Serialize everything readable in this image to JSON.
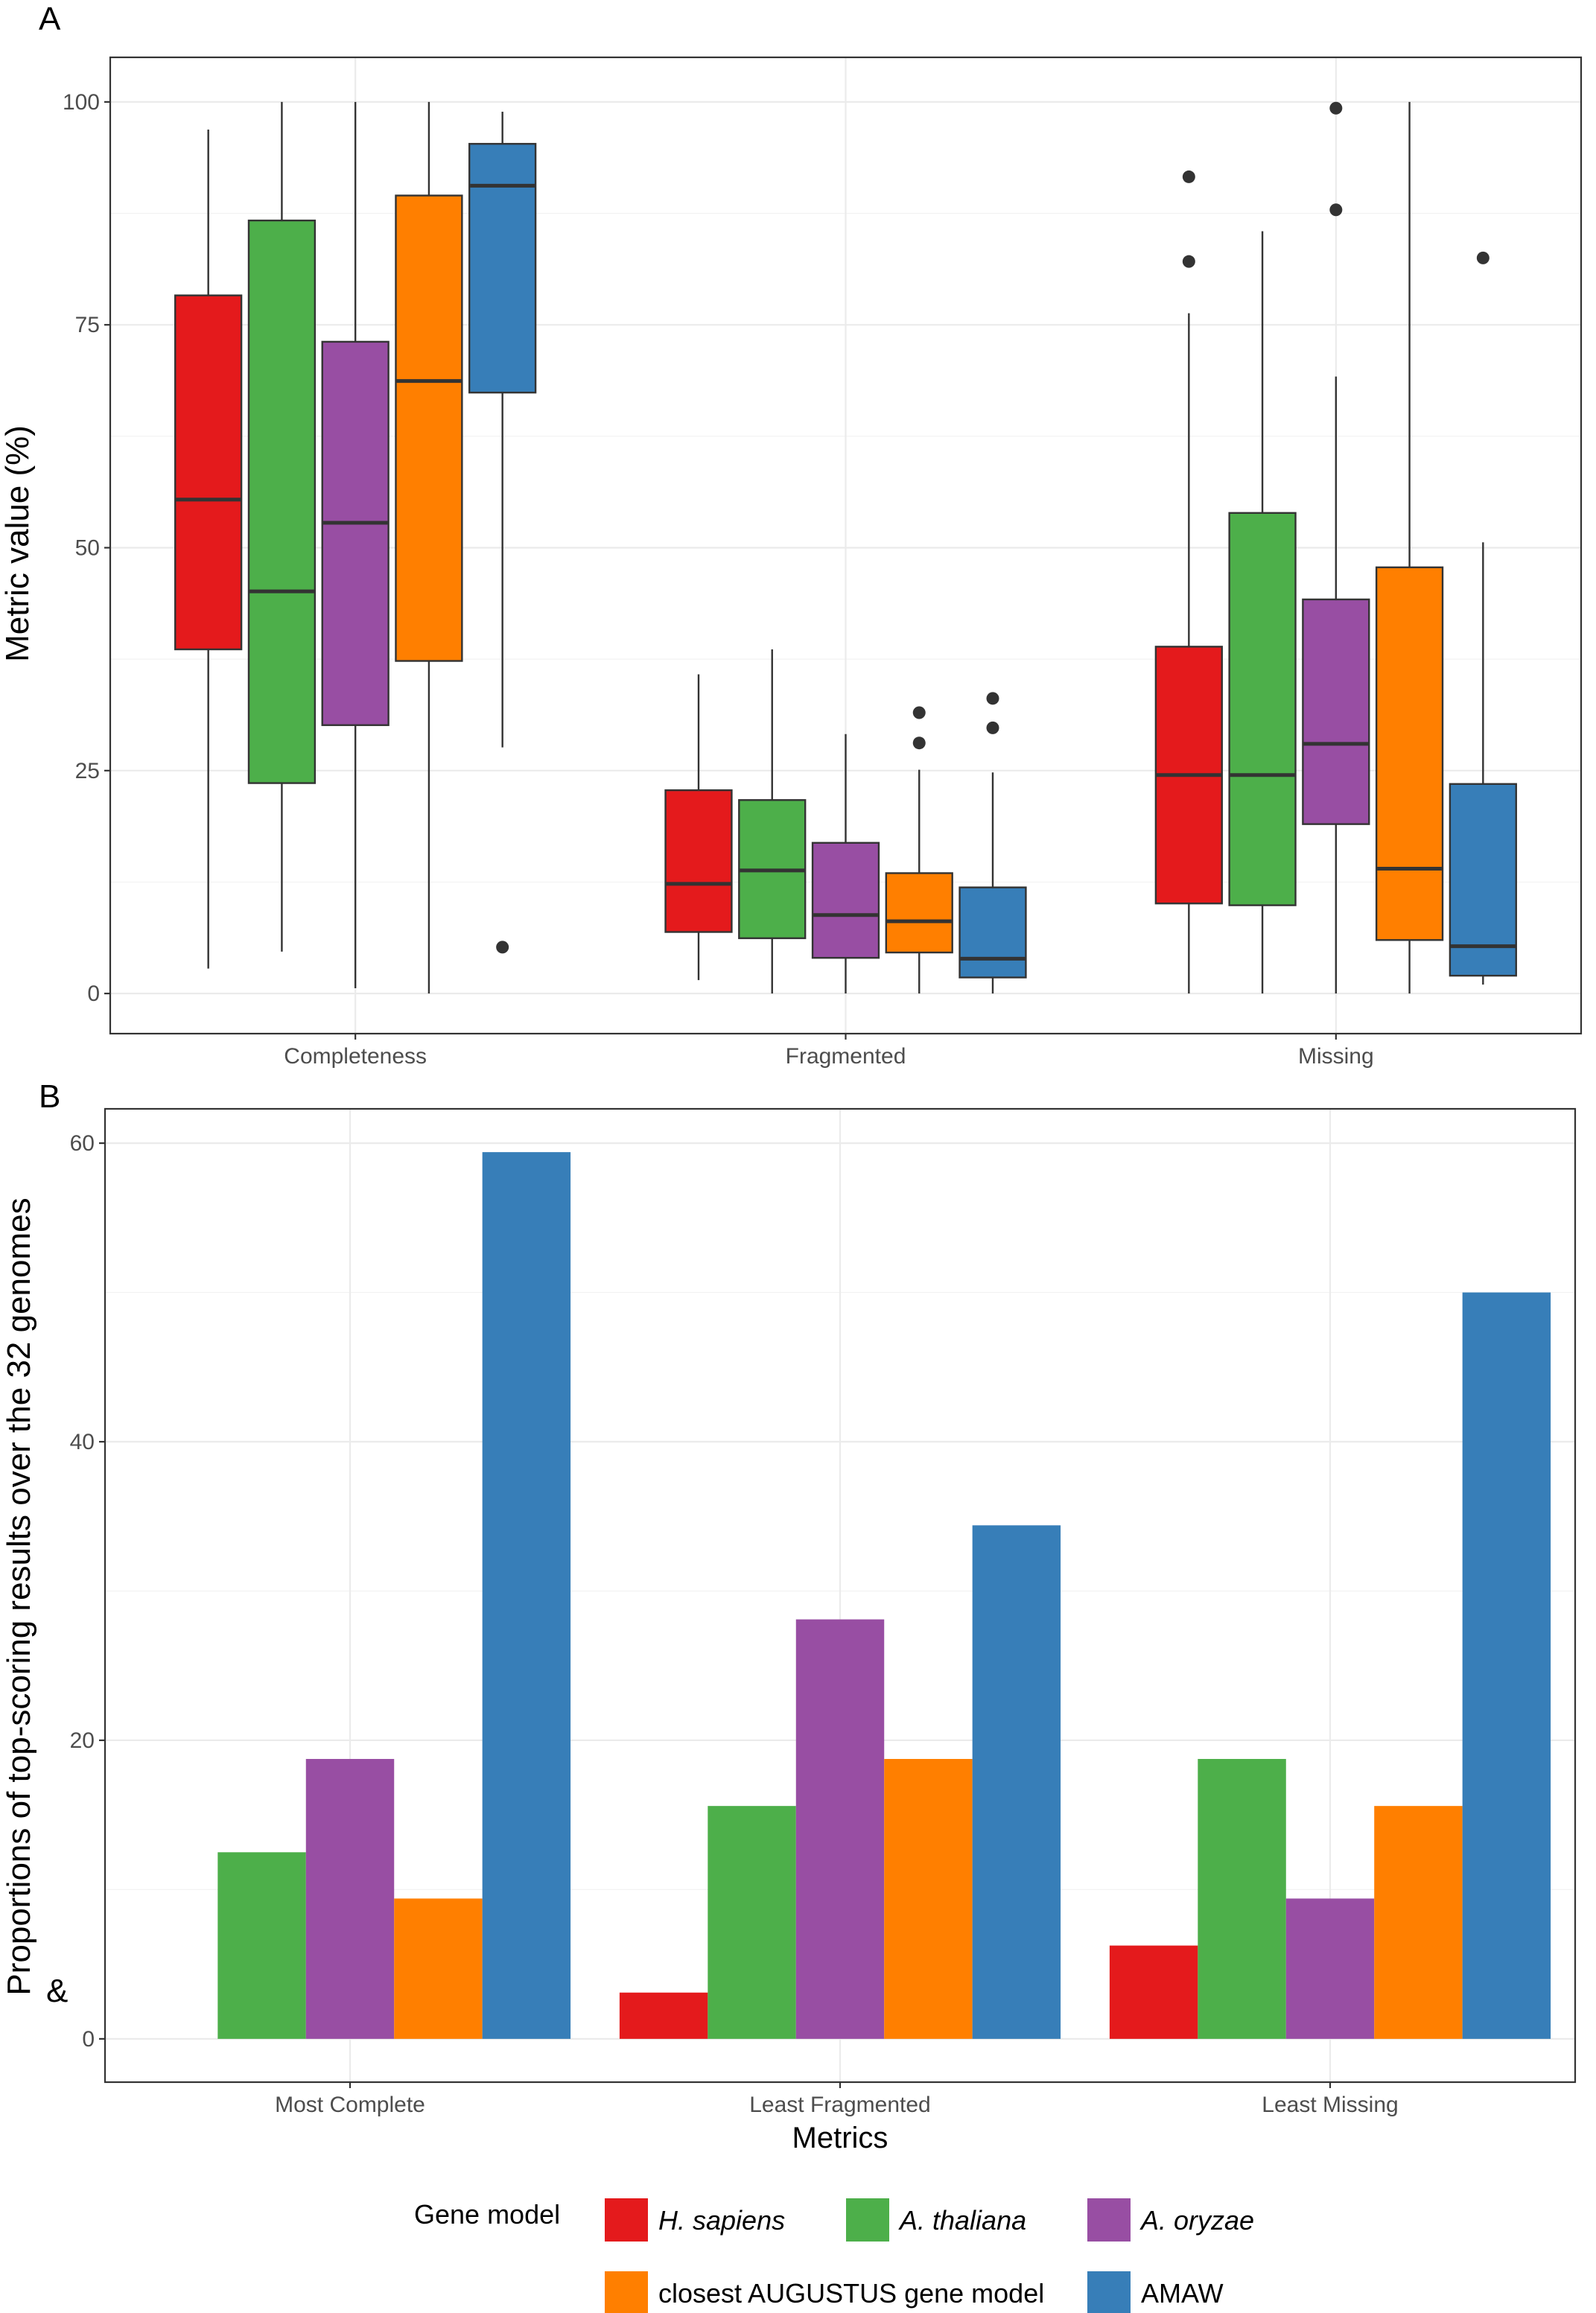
{
  "legend": {
    "title": "Gene model",
    "entries": [
      {
        "label": "H. sapiens",
        "color": "#E41A1C",
        "italic": true
      },
      {
        "label": "A. thaliana",
        "color": "#4DAF4A",
        "italic": true
      },
      {
        "label": "A. oryzae",
        "color": "#984EA3",
        "italic": true
      },
      {
        "label": "closest AUGUSTUS gene model",
        "color": "#FF7F00",
        "italic": false
      },
      {
        "label": "AMAW",
        "color": "#377EB8",
        "italic": false
      }
    ]
  },
  "stray_glyph": "&",
  "chart_data": [
    {
      "panel": "A",
      "type": "boxplot",
      "ylabel": "Metric value (%)",
      "ylim": [
        -4.5,
        105
      ],
      "yticks": [
        0,
        25,
        50,
        75,
        100
      ],
      "categories": [
        "Completeness",
        "Fragmented",
        "Missing"
      ],
      "grid": true,
      "series": [
        {
          "name": "H. sapiens",
          "color": "#E41A1C",
          "boxes": [
            {
              "min": 2.8,
              "q1": 38.6,
              "median": 55.4,
              "q3": 78.3,
              "max": 96.9,
              "outliers": []
            },
            {
              "min": 1.5,
              "q1": 6.9,
              "median": 12.3,
              "q3": 22.8,
              "max": 35.8,
              "outliers": []
            },
            {
              "min": 0,
              "q1": 10.1,
              "median": 24.5,
              "q3": 38.9,
              "max": 76.3,
              "outliers": [
                82.1,
                91.6
              ]
            }
          ]
        },
        {
          "name": "A. thaliana",
          "color": "#4DAF4A",
          "boxes": [
            {
              "min": 4.7,
              "q1": 23.6,
              "median": 45.1,
              "q3": 86.7,
              "max": 100,
              "outliers": []
            },
            {
              "min": 0,
              "q1": 6.2,
              "median": 13.8,
              "q3": 21.7,
              "max": 38.6,
              "outliers": []
            },
            {
              "min": 0,
              "q1": 9.9,
              "median": 24.5,
              "q3": 53.9,
              "max": 85.5,
              "outliers": []
            }
          ]
        },
        {
          "name": "A. oryzae",
          "color": "#984EA3",
          "boxes": [
            {
              "min": 0.6,
              "q1": 30.1,
              "median": 52.8,
              "q3": 73.1,
              "max": 100,
              "outliers": []
            },
            {
              "min": 0,
              "q1": 4.0,
              "median": 8.8,
              "q3": 16.9,
              "max": 29.1,
              "outliers": []
            },
            {
              "min": 0,
              "q1": 19.0,
              "median": 28.0,
              "q3": 44.2,
              "max": 69.2,
              "outliers": [
                87.9,
                99.3
              ]
            }
          ]
        },
        {
          "name": "closest AUGUSTUS gene model",
          "color": "#FF7F00",
          "boxes": [
            {
              "min": 0,
              "q1": 37.3,
              "median": 68.7,
              "q3": 89.5,
              "max": 100,
              "outliers": []
            },
            {
              "min": 0,
              "q1": 4.6,
              "median": 8.1,
              "q3": 13.5,
              "max": 25.1,
              "outliers": [
                28.1,
                31.5
              ]
            },
            {
              "min": 0,
              "q1": 6.0,
              "median": 14.0,
              "q3": 47.8,
              "max": 100,
              "outliers": []
            }
          ]
        },
        {
          "name": "AMAW",
          "color": "#377EB8",
          "boxes": [
            {
              "min": 27.6,
              "q1": 67.4,
              "median": 90.6,
              "q3": 95.3,
              "max": 98.9,
              "outliers": [
                5.2
              ]
            },
            {
              "min": 0,
              "q1": 1.8,
              "median": 3.9,
              "q3": 11.9,
              "max": 24.8,
              "outliers": [
                29.8,
                33.1
              ]
            },
            {
              "min": 1.0,
              "q1": 2.0,
              "median": 5.3,
              "q3": 23.5,
              "max": 50.6,
              "outliers": [
                82.5
              ]
            }
          ]
        }
      ]
    },
    {
      "panel": "B",
      "type": "bar",
      "ylabel": "Proportions  of top-scoring results over the 32 genomes",
      "xlabel": "Metrics",
      "ylim": [
        -2.9,
        62.3
      ],
      "yticks": [
        0,
        20,
        40,
        60
      ],
      "categories": [
        "Most Complete",
        "Least Fragmented",
        "Least Missing"
      ],
      "grid": true,
      "series": [
        {
          "name": "H. sapiens",
          "color": "#E41A1C",
          "values": [
            0,
            3.1,
            6.25
          ]
        },
        {
          "name": "A. thaliana",
          "color": "#4DAF4A",
          "values": [
            12.5,
            15.6,
            18.75
          ]
        },
        {
          "name": "A. oryzae",
          "color": "#984EA3",
          "values": [
            18.75,
            28.1,
            9.4
          ]
        },
        {
          "name": "closest AUGUSTUS gene model",
          "color": "#FF7F00",
          "values": [
            9.4,
            18.75,
            15.6
          ]
        },
        {
          "name": "AMAW",
          "color": "#377EB8",
          "values": [
            59.4,
            34.4,
            50.0
          ]
        }
      ]
    }
  ]
}
